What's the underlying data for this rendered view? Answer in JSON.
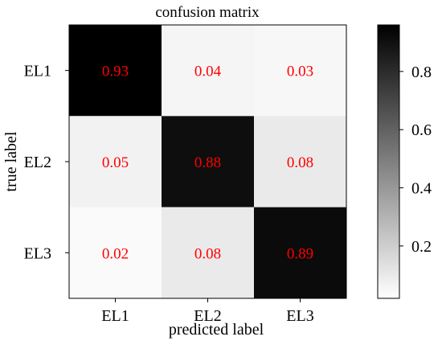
{
  "chart_data": {
    "type": "heatmap",
    "title": "confusion matrix",
    "xlabel": "predicted label",
    "ylabel": "true label",
    "x_categories": [
      "EL1",
      "EL2",
      "EL3"
    ],
    "y_categories": [
      "EL1",
      "EL2",
      "EL3"
    ],
    "values": [
      [
        0.93,
        0.04,
        0.03
      ],
      [
        0.05,
        0.88,
        0.08
      ],
      [
        0.02,
        0.08,
        0.89
      ]
    ],
    "value_labels": [
      [
        "0.93",
        "0.04",
        "0.03"
      ],
      [
        "0.05",
        "0.88",
        "0.08"
      ],
      [
        "0.02",
        "0.08",
        "0.89"
      ]
    ],
    "colormap": "greys",
    "color_range": [
      0.02,
      0.93
    ],
    "annotation_color": "#ff0000",
    "colorbar": {
      "ticks": [
        0.2,
        0.4,
        0.6,
        0.8
      ],
      "tick_labels": [
        "0.2",
        "0.4",
        "0.6",
        "0.8"
      ],
      "range": [
        0.02,
        0.96
      ]
    }
  }
}
